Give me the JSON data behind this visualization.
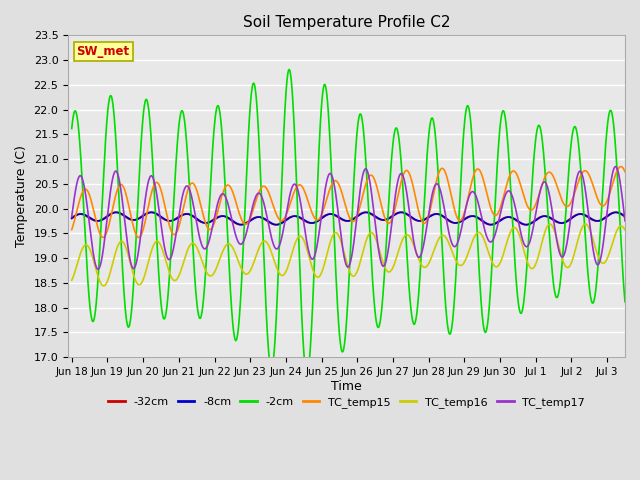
{
  "title": "Soil Temperature Profile C2",
  "xlabel": "Time",
  "ylabel": "Temperature (C)",
  "annotation": "SW_met",
  "ylim": [
    17.0,
    23.5
  ],
  "xlim_days": 15.5,
  "series": {
    "neg32cm": {
      "label": "-32cm",
      "color": "#cc0000",
      "lw": 1.2
    },
    "neg8cm": {
      "label": "-8cm",
      "color": "#0000cc",
      "lw": 1.2
    },
    "neg2cm": {
      "label": "-2cm",
      "color": "#00dd00",
      "lw": 1.2
    },
    "tc15": {
      "label": "TC_temp15",
      "color": "#ff8800",
      "lw": 1.2
    },
    "tc16": {
      "label": "TC_temp16",
      "color": "#cccc00",
      "lw": 1.2
    },
    "tc17": {
      "label": "TC_temp17",
      "color": "#9933cc",
      "lw": 1.2
    }
  },
  "xtick_labels": [
    "Jun 18",
    "Jun 19",
    "Jun 20",
    "Jun 21",
    "Jun 22",
    "Jun 23",
    "Jun 24",
    "Jun 25",
    "Jun 26",
    "Jun 27",
    "Jun 28",
    "Jun 29",
    "Jun 30",
    "Jul 1",
    "Jul 2",
    "Jul 3"
  ],
  "ytick_vals": [
    17.0,
    17.5,
    18.0,
    18.5,
    19.0,
    19.5,
    20.0,
    20.5,
    21.0,
    21.5,
    22.0,
    22.5,
    23.0,
    23.5
  ],
  "bg_color": "#e0e0e0",
  "plot_bg": "#e8e8e8",
  "annotation_bg": "#ffff99",
  "annotation_border": "#aaaa00"
}
